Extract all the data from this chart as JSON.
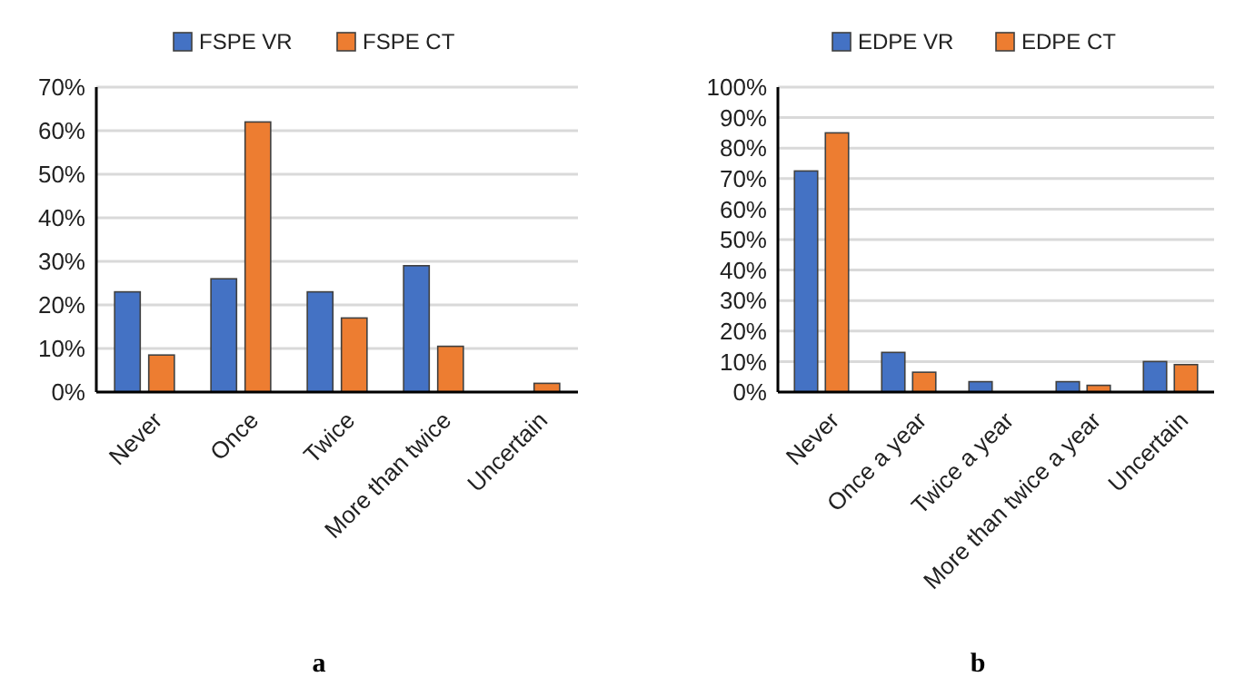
{
  "chart_data": [
    {
      "type": "bar",
      "title": "a",
      "categories": [
        "Never",
        "Once",
        "Twice",
        "More than twice",
        "Uncertain"
      ],
      "series": [
        {
          "name": "FSPE VR",
          "color": "#4472c4",
          "values": [
            23,
            26,
            23,
            29,
            0
          ]
        },
        {
          "name": "FSPE CT",
          "color": "#ed7d31",
          "values": [
            8.5,
            62,
            17,
            10.5,
            2
          ]
        }
      ],
      "ylim": [
        0,
        70
      ],
      "yticks": [
        {
          "value": 0,
          "label": "0%"
        },
        {
          "value": 10,
          "label": "10%"
        },
        {
          "value": 20,
          "label": "20%"
        },
        {
          "value": 30,
          "label": "30%"
        },
        {
          "value": 40,
          "label": "40%"
        },
        {
          "value": 50,
          "label": "50%"
        },
        {
          "value": 60,
          "label": "60%"
        },
        {
          "value": 70,
          "label": "70%"
        }
      ],
      "grid": "y",
      "legend": "top"
    },
    {
      "type": "bar",
      "title": "b",
      "categories": [
        "Never",
        "Once a year",
        "Twice a year",
        "More than twice a year",
        "Uncertain"
      ],
      "series": [
        {
          "name": "EDPE VR",
          "color": "#4472c4",
          "values": [
            72.5,
            13,
            3.4,
            3.4,
            10
          ]
        },
        {
          "name": "EDPE CT",
          "color": "#ed7d31",
          "values": [
            85,
            6.5,
            0,
            2.2,
            9
          ]
        }
      ],
      "ylim": [
        0,
        100
      ],
      "yticks": [
        {
          "value": 0,
          "label": "0%"
        },
        {
          "value": 10,
          "label": "10%"
        },
        {
          "value": 20,
          "label": "20%"
        },
        {
          "value": 30,
          "label": "30%"
        },
        {
          "value": 40,
          "label": "40%"
        },
        {
          "value": 50,
          "label": "50%"
        },
        {
          "value": 60,
          "label": "60%"
        },
        {
          "value": 70,
          "label": "70%"
        },
        {
          "value": 80,
          "label": "80%"
        },
        {
          "value": 90,
          "label": "90%"
        },
        {
          "value": 100,
          "label": "100%"
        }
      ],
      "grid": "y",
      "legend": "top"
    }
  ]
}
